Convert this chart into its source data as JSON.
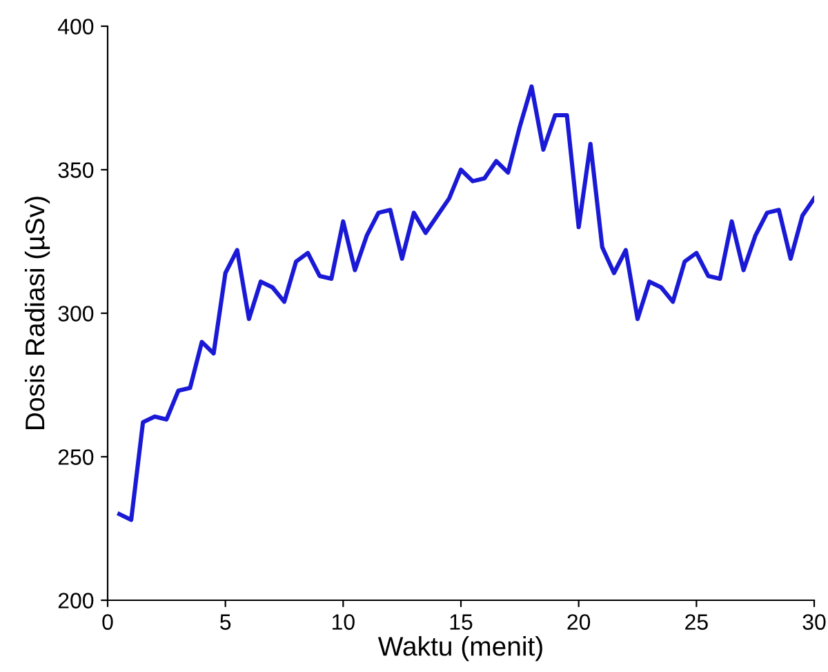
{
  "chart_data": {
    "type": "line",
    "xlabel": "Waktu (menit)",
    "ylabel": "Dosis Radiasi (µSv)",
    "xlim": [
      0,
      30
    ],
    "ylim": [
      200,
      400
    ],
    "xticks": [
      0,
      5,
      10,
      15,
      20,
      25,
      30
    ],
    "yticks": [
      200,
      250,
      300,
      350,
      400
    ],
    "grid": false,
    "marker": "none",
    "line_style": "solid",
    "x": [
      0.5,
      1,
      1.5,
      2,
      2.5,
      3,
      3.5,
      4,
      4.5,
      5,
      5.5,
      6,
      6.5,
      7,
      7.5,
      8,
      8.5,
      9,
      9.5,
      10,
      10.5,
      11,
      11.5,
      12,
      12.5,
      13,
      13.5,
      14,
      14.5,
      15,
      15.5,
      16,
      16.5,
      17,
      17.5,
      18,
      18.5,
      19,
      19.5,
      20,
      20.5,
      21,
      21.5,
      22,
      22.5,
      23,
      23.5,
      24,
      24.5,
      25,
      25.5,
      26,
      26.5,
      27,
      27.5,
      28,
      28.5,
      29,
      29.5,
      30
    ],
    "series": [
      {
        "color": "#1a1ad6",
        "values": [
          230,
          228,
          262,
          264,
          263,
          273,
          274,
          290,
          286,
          314,
          322,
          298,
          311,
          309,
          304,
          318,
          321,
          313,
          312,
          332,
          315,
          327,
          335,
          336,
          319,
          335,
          328,
          334,
          340,
          350,
          346,
          347,
          353,
          349,
          365,
          379,
          357,
          369,
          369,
          330,
          359,
          323,
          314,
          322,
          298,
          311,
          309,
          304,
          318,
          321,
          313,
          312,
          332,
          315,
          327,
          335,
          336,
          319,
          334,
          340
        ]
      }
    ]
  }
}
